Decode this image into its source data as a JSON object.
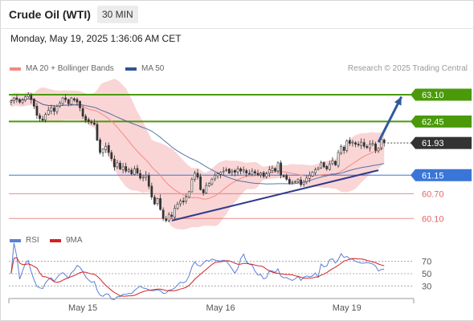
{
  "header": {
    "title": "Crude Oil (WTI)",
    "timeframe": "30 MIN",
    "datetime": "Monday, May 19, 2025 1:36:06 AM CET"
  },
  "legend": {
    "ma20": "MA 20 + Bollinger Bands",
    "ma50": "MA 50",
    "credit": "Research © 2025 Trading Central",
    "rsi": "RSI",
    "rsi_ma": "9MA"
  },
  "colors": {
    "up": "#2e7d32",
    "down": "#c62828",
    "ma20": "#f28b82",
    "ma50": "#2f5597",
    "bollinger": "#f8c7c7",
    "resistance": "#4a9a0a",
    "support": "#3a76d8",
    "lower": "#e06666",
    "trend": "#2f3b8c",
    "arrow": "#2f5b9a",
    "rsi": "#5b7fd6",
    "rsi_ma": "#d62020",
    "current": "#333333"
  },
  "chart_data": {
    "type": "candlestick",
    "ylim": [
      59.95,
      63.45
    ],
    "x_ticks": [
      {
        "label": "May 15",
        "index": 25
      },
      {
        "label": "May 16",
        "index": 73
      },
      {
        "label": "May 19",
        "index": 117
      }
    ],
    "levels": [
      {
        "value": 63.1,
        "label": "63.10",
        "style": "resistance"
      },
      {
        "value": 62.45,
        "label": "62.45",
        "style": "resistance"
      },
      {
        "value": 61.93,
        "label": "61.93",
        "style": "current"
      },
      {
        "value": 61.15,
        "label": "61.15",
        "style": "support"
      },
      {
        "value": 60.7,
        "label": "60.70",
        "style": "lower"
      },
      {
        "value": 60.1,
        "label": "60.10",
        "style": "lower"
      }
    ],
    "trendline": {
      "from": {
        "index": 56,
        "value": 60.05
      },
      "to": {
        "index": 128,
        "value": 61.27
      }
    },
    "arrow": {
      "from": {
        "index": 128,
        "value": 61.95
      },
      "to": {
        "index": 136,
        "value": 63.05
      }
    },
    "rsi": {
      "ylim": [
        20,
        80
      ],
      "ticks": [
        70,
        50,
        30
      ]
    },
    "closes": [
      62.95,
      63.02,
      63.0,
      62.92,
      62.97,
      63.05,
      63.1,
      62.98,
      62.82,
      62.6,
      62.52,
      62.48,
      62.62,
      62.72,
      62.78,
      62.7,
      62.82,
      62.9,
      63.02,
      62.98,
      62.88,
      63.02,
      62.97,
      62.92,
      62.78,
      62.58,
      62.48,
      62.45,
      62.42,
      62.38,
      62.0,
      61.7,
      61.78,
      61.85,
      61.7,
      61.55,
      61.35,
      61.45,
      61.3,
      61.35,
      61.25,
      61.28,
      61.18,
      61.3,
      61.2,
      61.08,
      61.1,
      61.15,
      60.88,
      60.62,
      60.45,
      60.58,
      60.32,
      60.1,
      60.05,
      60.2,
      60.15,
      60.35,
      60.45,
      60.52,
      60.5,
      60.62,
      60.75,
      61.05,
      61.2,
      61.1,
      60.8,
      60.72,
      60.9,
      60.95,
      61.05,
      61.15,
      61.18,
      61.22,
      61.25,
      61.28,
      61.2,
      61.25,
      61.22,
      61.3,
      61.25,
      61.28,
      61.2,
      61.18,
      61.25,
      61.2,
      61.15,
      61.2,
      61.12,
      61.18,
      61.28,
      61.32,
      61.25,
      61.45,
      61.15,
      61.12,
      61.05,
      60.95,
      60.98,
      61.0,
      61.05,
      60.92,
      60.98,
      61.08,
      61.15,
      61.22,
      61.28,
      61.32,
      61.45,
      61.35,
      61.3,
      61.42,
      61.5,
      61.4,
      61.7,
      61.85,
      61.75,
      61.98,
      61.92,
      61.95,
      61.9,
      61.88,
      61.95,
      61.85,
      61.82,
      61.9,
      61.92,
      61.75,
      61.8,
      62.02,
      61.93
    ]
  }
}
